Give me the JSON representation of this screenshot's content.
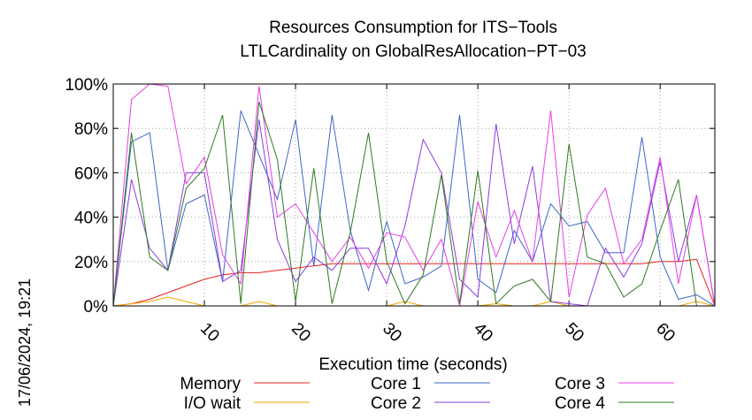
{
  "chart_data": {
    "type": "line",
    "title": "Resources Consumption for ITS−Tools",
    "subtitle": "LTLCardinality on GlobalResAllocation−PT−03",
    "xlabel": "Execution time (seconds)",
    "ylabel": "",
    "timestamp": "17/06/2024, 19:21",
    "xlim": [
      0,
      66
    ],
    "ylim": [
      0,
      100
    ],
    "x_ticks": [
      10,
      20,
      30,
      40,
      50,
      60
    ],
    "x_tick_labels": [
      "10",
      "20",
      "30",
      "40",
      "50",
      "60"
    ],
    "y_ticks": [
      0,
      20,
      40,
      60,
      80,
      100
    ],
    "y_tick_labels": [
      "0%",
      "20%",
      "40%",
      "60%",
      "80%",
      "100%"
    ],
    "grid": true,
    "legend_placement": "bottom",
    "x": [
      0,
      2,
      4,
      6,
      8,
      10,
      12,
      14,
      16,
      18,
      20,
      22,
      24,
      26,
      28,
      30,
      32,
      34,
      36,
      38,
      40,
      42,
      44,
      46,
      48,
      50,
      52,
      54,
      56,
      58,
      60,
      62,
      64,
      66
    ],
    "series": [
      {
        "name": "Memory",
        "color": "#e8221c",
        "values": [
          0,
          1,
          3,
          6,
          9,
          12,
          14,
          15,
          15,
          16,
          17,
          18,
          19,
          19,
          19,
          19,
          19,
          19,
          19,
          19,
          19,
          19,
          19,
          19,
          19,
          19,
          19,
          19,
          19,
          19,
          20,
          20,
          21,
          0
        ]
      },
      {
        "name": "I/O wait",
        "color": "#f2a500",
        "values": [
          0,
          1,
          2,
          4,
          2,
          0,
          0,
          0,
          2,
          0,
          0,
          0,
          0,
          0,
          0,
          0,
          2,
          0,
          0,
          0,
          0,
          1,
          0,
          0,
          2,
          0,
          0,
          0,
          0,
          0,
          0,
          0,
          2,
          0
        ]
      },
      {
        "name": "Core 1",
        "color": "#3f66c8",
        "values": [
          0,
          74,
          78,
          16,
          46,
          50,
          11,
          88,
          68,
          48,
          84,
          18,
          86,
          34,
          7,
          38,
          10,
          13,
          18,
          86,
          12,
          6,
          34,
          20,
          46,
          36,
          38,
          24,
          24,
          76,
          22,
          3,
          5,
          0
        ]
      },
      {
        "name": "Core 2",
        "color": "#8a3be0",
        "values": [
          0,
          57,
          26,
          16,
          60,
          60,
          11,
          16,
          84,
          30,
          11,
          22,
          16,
          26,
          26,
          10,
          36,
          75,
          60,
          12,
          4,
          82,
          28,
          63,
          2,
          1,
          0,
          26,
          13,
          28,
          65,
          20,
          50,
          0
        ]
      },
      {
        "name": "Core 3",
        "color": "#e83fe8",
        "values": [
          0,
          93,
          100,
          99,
          55,
          67,
          23,
          10,
          99,
          40,
          46,
          33,
          20,
          31,
          17,
          33,
          31,
          16,
          30,
          0,
          47,
          22,
          43,
          20,
          88,
          4,
          41,
          53,
          19,
          30,
          67,
          10,
          50,
          0
        ]
      },
      {
        "name": "Core 4",
        "color": "#2e7a20",
        "values": [
          0,
          78,
          22,
          16,
          53,
          62,
          86,
          1,
          92,
          66,
          2,
          62,
          1,
          33,
          78,
          20,
          1,
          14,
          59,
          1,
          61,
          1,
          9,
          12,
          2,
          73,
          22,
          19,
          4,
          10,
          34,
          57,
          0,
          0
        ]
      }
    ]
  }
}
